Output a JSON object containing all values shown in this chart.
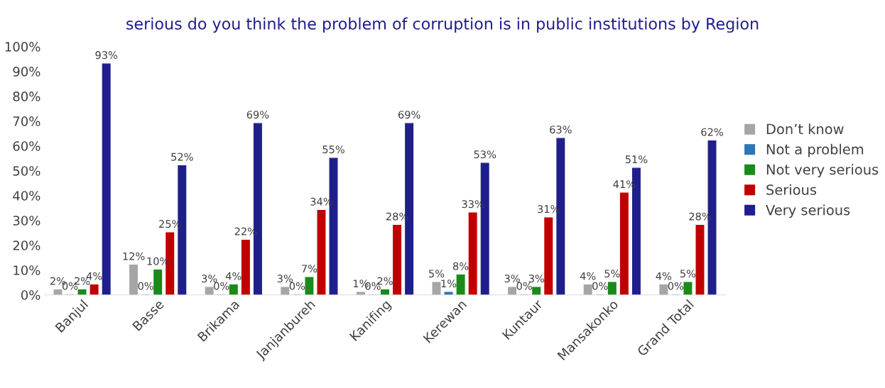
{
  "chart_data": {
    "type": "bar",
    "title": "serious do you think the problem of corruption is in public institutions by Region",
    "categories": [
      "Banjul",
      "Basse",
      "Brikama",
      "Janjanbureh",
      "Kanifing",
      "Kerewan",
      "Kuntaur",
      "Mansakonko",
      "Grand Total"
    ],
    "series": [
      {
        "name": "Don’t know",
        "color": "#a6a6a6",
        "values": [
          2,
          12,
          3,
          3,
          1,
          5,
          3,
          4,
          4
        ],
        "value_labels": [
          "2%",
          "12%",
          "3%",
          "3%",
          "1%",
          "5%",
          "3%",
          "4%",
          "4%"
        ]
      },
      {
        "name": "Not a problem",
        "color": "#2e75b6",
        "values": [
          0,
          0,
          0,
          0,
          0,
          1,
          0,
          0,
          0
        ],
        "value_labels": [
          "0%",
          "0%",
          "0%",
          "0%",
          "0%",
          "1%",
          "0%",
          "0%",
          "0%"
        ]
      },
      {
        "name": "Not very serious",
        "color": "#1a8a1a",
        "values": [
          2,
          10,
          4,
          7,
          2,
          8,
          3,
          5,
          5
        ],
        "value_labels": [
          "2%",
          "10%",
          "4%",
          "7%",
          "2%",
          "8%",
          "3%",
          "5%",
          "5%"
        ]
      },
      {
        "name": "Serious",
        "color": "#c00000",
        "values": [
          4,
          25,
          22,
          34,
          28,
          33,
          31,
          41,
          28
        ],
        "value_labels": [
          "4%",
          "25%",
          "22%",
          "34%",
          "28%",
          "33%",
          "31%",
          "41%",
          "28%"
        ]
      },
      {
        "name": "Very serious",
        "color": "#1f1f8c",
        "values": [
          93,
          52,
          69,
          55,
          69,
          53,
          63,
          51,
          62
        ],
        "value_labels": [
          "93%",
          "52%",
          "69%",
          "55%",
          "69%",
          "53%",
          "63%",
          "51%",
          "62%"
        ]
      }
    ],
    "ylim": [
      0,
      100
    ],
    "yticks": [
      {
        "value": 0,
        "label": "0%"
      },
      {
        "value": 10,
        "label": "10%"
      },
      {
        "value": 20,
        "label": "20%"
      },
      {
        "value": 30,
        "label": "30%"
      },
      {
        "value": 40,
        "label": "40%"
      },
      {
        "value": 50,
        "label": "50%"
      },
      {
        "value": 60,
        "label": "60%"
      },
      {
        "value": 70,
        "label": "70%"
      },
      {
        "value": 80,
        "label": "80%"
      },
      {
        "value": 90,
        "label": "90%"
      },
      {
        "value": 100,
        "label": "100%"
      }
    ],
    "grid": false,
    "legend": "right"
  }
}
